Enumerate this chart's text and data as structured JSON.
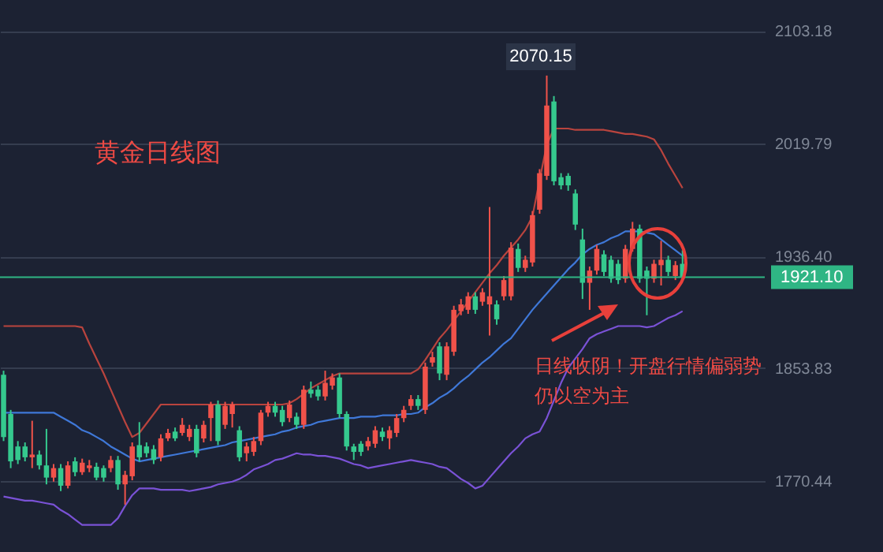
{
  "chart_data": {
    "type": "candlestick",
    "title": "黄金日线图",
    "annotations": [
      "日线收阴！开盘行情偏弱势",
      "仍以空为主",
      "2070.15"
    ],
    "categories": [
      null,
      null,
      null,
      null,
      null,
      null,
      null,
      null,
      null,
      null,
      null,
      null,
      null,
      null,
      null,
      null,
      null,
      null,
      null,
      null,
      null,
      null,
      null,
      null,
      null,
      null,
      null,
      null,
      null,
      null,
      null,
      null,
      null,
      null,
      null,
      null,
      null,
      null,
      null,
      null,
      null,
      null,
      null,
      null,
      null,
      null,
      null,
      null,
      null,
      null,
      null,
      null,
      null,
      null,
      null,
      null,
      null,
      null,
      null,
      null,
      null,
      null,
      null,
      null,
      null,
      null,
      null,
      null,
      null,
      null,
      null,
      null,
      null,
      null,
      null,
      null,
      null,
      null,
      null,
      null,
      null,
      null,
      null,
      null,
      null,
      null,
      null,
      null,
      null,
      null,
      null,
      null,
      null,
      null,
      null,
      null,
      null,
      null,
      null,
      null,
      null,
      null,
      null,
      null,
      null,
      null,
      null
    ],
    "ohlc": [
      [
        1849,
        1852,
        1800,
        1803
      ],
      [
        1820,
        1823,
        1780,
        1785
      ],
      [
        1796,
        1800,
        1783,
        1786
      ],
      [
        1796,
        1799,
        1785,
        1788
      ],
      [
        1788,
        1815,
        1780,
        1790
      ],
      [
        1790,
        1793,
        1779,
        1782
      ],
      [
        1782,
        1809,
        1768,
        1773
      ],
      [
        1773,
        1783,
        1770,
        1780
      ],
      [
        1780,
        1783,
        1763,
        1767
      ],
      [
        1767,
        1785,
        1765,
        1782
      ],
      [
        1785,
        1788,
        1774,
        1777
      ],
      [
        1777,
        1787,
        1775,
        1784
      ],
      [
        1780,
        1786,
        1777,
        1782
      ],
      [
        1781,
        1784,
        1771,
        1773
      ],
      [
        1780,
        1782,
        1770,
        1773
      ],
      [
        1780,
        1789,
        1777,
        1786
      ],
      [
        1786,
        1789,
        1764,
        1768
      ],
      [
        1768,
        1778,
        1753,
        1775
      ],
      [
        1774,
        1799,
        1771,
        1796
      ],
      [
        1797,
        1814,
        1785,
        1788
      ],
      [
        1796,
        1799,
        1788,
        1791
      ],
      [
        1794,
        1797,
        1783,
        1786
      ],
      [
        1788,
        1805,
        1785,
        1802
      ],
      [
        1802,
        1809,
        1800,
        1806
      ],
      [
        1807,
        1810,
        1800,
        1802
      ],
      [
        1806,
        1817,
        1804,
        1812
      ],
      [
        1803,
        1812,
        1800,
        1809
      ],
      [
        1809,
        1812,
        1788,
        1791
      ],
      [
        1802,
        1815,
        1799,
        1812
      ],
      [
        1817,
        1829,
        1800,
        1827
      ],
      [
        1827,
        1830,
        1797,
        1800
      ],
      [
        1812,
        1829,
        1809,
        1826
      ],
      [
        1820,
        1829,
        1810,
        1827
      ],
      [
        1808,
        1811,
        1785,
        1788
      ],
      [
        1791,
        1799,
        1785,
        1796
      ],
      [
        1792,
        1803,
        1789,
        1800
      ],
      [
        1800,
        1823,
        1797,
        1821
      ],
      [
        1821,
        1829,
        1818,
        1826
      ],
      [
        1826,
        1829,
        1818,
        1821
      ],
      [
        1823,
        1826,
        1811,
        1814
      ],
      [
        1817,
        1830,
        1814,
        1827
      ],
      [
        1818,
        1821,
        1809,
        1812
      ],
      [
        1812,
        1841,
        1809,
        1838
      ],
      [
        1838,
        1844,
        1832,
        1835
      ],
      [
        1838,
        1841,
        1830,
        1833
      ],
      [
        1833,
        1852,
        1830,
        1843
      ],
      [
        1841,
        1850,
        1838,
        1847
      ],
      [
        1847,
        1850,
        1817,
        1820
      ],
      [
        1820,
        1822,
        1793,
        1796
      ],
      [
        1796,
        1798,
        1786,
        1792
      ],
      [
        1798,
        1800,
        1789,
        1792
      ],
      [
        1796,
        1803,
        1793,
        1800
      ],
      [
        1798,
        1811,
        1795,
        1808
      ],
      [
        1807,
        1810,
        1800,
        1803
      ],
      [
        1802,
        1811,
        1794,
        1808
      ],
      [
        1806,
        1820,
        1803,
        1817
      ],
      [
        1817,
        1826,
        1814,
        1823
      ],
      [
        1826,
        1834,
        1823,
        1831
      ],
      [
        1831,
        1834,
        1823,
        1826
      ],
      [
        1823,
        1858,
        1820,
        1855
      ],
      [
        1858,
        1866,
        1855,
        1862
      ],
      [
        1870,
        1873,
        1845,
        1850
      ],
      [
        1849,
        1873,
        1845,
        1870
      ],
      [
        1866,
        1900,
        1863,
        1897
      ],
      [
        1896,
        1905,
        1893,
        1901
      ],
      [
        1897,
        1910,
        1894,
        1907
      ],
      [
        1907,
        1910,
        1894,
        1897
      ],
      [
        1903,
        1913,
        1900,
        1910
      ],
      [
        1901,
        1973,
        1878,
        1907
      ],
      [
        1901,
        1904,
        1886,
        1890
      ],
      [
        1907,
        1922,
        1904,
        1919
      ],
      [
        1907,
        1947,
        1904,
        1943
      ],
      [
        1942,
        1946,
        1925,
        1928
      ],
      [
        1928,
        1937,
        1925,
        1934
      ],
      [
        1932,
        1970,
        1929,
        1967
      ],
      [
        1971,
        2001,
        1968,
        1998
      ],
      [
        1996,
        2070.15,
        1993,
        2048
      ],
      [
        2051,
        2055,
        1989,
        1992
      ],
      [
        1995,
        1998,
        1986,
        1989
      ],
      [
        1996,
        1998,
        1985,
        1989
      ],
      [
        1983,
        1986,
        1956,
        1960
      ],
      [
        1949,
        1957,
        1905,
        1917
      ],
      [
        1917,
        1929,
        1897,
        1926
      ],
      [
        1926,
        1945,
        1923,
        1942
      ],
      [
        1938,
        1941,
        1922,
        1925
      ],
      [
        1934,
        1937,
        1917,
        1920
      ],
      [
        1931,
        1934,
        1916,
        1919
      ],
      [
        1920,
        1945,
        1917,
        1942
      ],
      [
        1942,
        1962,
        1940,
        1957
      ],
      [
        1957,
        1960,
        1917,
        1920
      ],
      [
        1926,
        1929,
        1893,
        1920
      ],
      [
        1920,
        1934,
        1917,
        1931
      ],
      [
        1930,
        1948,
        1915,
        1934
      ],
      [
        1934,
        1937,
        1922,
        1925
      ],
      [
        1922,
        1933,
        1919,
        1930
      ],
      [
        1931,
        1941,
        1919,
        1921.1
      ],
      null,
      null,
      null,
      null,
      null,
      null,
      null,
      null,
      null,
      null,
      null
    ],
    "colors": [
      "#35c98e",
      "#35c98e",
      "#35c98e",
      "#35c98e",
      "#f0524a",
      "#35c98e",
      "#35c98e",
      "#f0524a",
      "#35c98e",
      "#f0524a",
      "#35c98e",
      "#f0524a",
      "#f0524a",
      "#35c98e",
      "#35c98e",
      "#f0524a",
      "#35c98e",
      "#f0524a",
      "#f0524a",
      "#35c98e",
      "#35c98e",
      "#35c98e",
      "#f0524a",
      "#f0524a",
      "#35c98e",
      "#f0524a",
      "#f0524a",
      "#35c98e",
      "#f0524a",
      "#f0524a",
      "#35c98e",
      "#f0524a",
      "#f0524a",
      "#35c98e",
      "#f0524a",
      "#f0524a",
      "#f0524a",
      "#f0524a",
      "#35c98e",
      "#35c98e",
      "#f0524a",
      "#35c98e",
      "#f0524a",
      "#35c98e",
      "#35c98e",
      "#f0524a",
      "#f0524a",
      "#35c98e",
      "#35c98e",
      "#35c98e",
      "#35c98e",
      "#f0524a",
      "#f0524a",
      "#35c98e",
      "#f0524a",
      "#f0524a",
      "#f0524a",
      "#f0524a",
      "#35c98e",
      "#f0524a",
      "#f0524a",
      "#35c98e",
      "#f0524a",
      "#f0524a",
      "#f0524a",
      "#f0524a",
      "#35c98e",
      "#f0524a",
      "#f0524a",
      "#35c98e",
      "#f0524a",
      "#f0524a",
      "#35c98e",
      "#f0524a",
      "#f0524a",
      "#f0524a",
      "#f0524a",
      "#35c98e",
      "#35c98e",
      "#35c98e",
      "#35c98e",
      "#35c98e",
      "#f0524a",
      "#f0524a",
      "#35c98e",
      "#35c98e",
      "#35c98e",
      "#f0524a",
      "#f0524a",
      "#35c98e",
      "#35c98e",
      "#f0524a",
      "#f0524a",
      "#35c98e",
      "#f0524a",
      "#35c98e",
      null,
      null,
      null,
      null,
      null,
      null,
      null,
      null,
      null,
      null,
      null
    ],
    "series": [
      {
        "type": "line",
        "color": "#b9443e",
        "values": [
          1885,
          1885,
          1885,
          1885,
          1885,
          1885,
          1885,
          1885,
          1885,
          1885,
          1885,
          1884,
          1872,
          1861,
          1850,
          1838,
          1826,
          1814,
          1803,
          1806,
          1813,
          1820,
          1827,
          1827,
          1827,
          1827,
          1827,
          1827,
          1827,
          1827,
          1827,
          1827,
          1827,
          1827,
          1827,
          1827,
          1827,
          1827,
          1827,
          1827,
          1828,
          1831,
          1835,
          1839,
          1842,
          1845,
          1848,
          1850,
          1850,
          1850,
          1850,
          1850,
          1850,
          1850,
          1850,
          1850,
          1850,
          1850,
          1853,
          1860,
          1868,
          1876,
          1882,
          1889,
          1896,
          1903,
          1910,
          1917,
          1924,
          1930,
          1937,
          1943,
          1949,
          1956,
          1966,
          1993,
          2019,
          2031,
          2031,
          2031,
          2030,
          2030,
          2030,
          2030,
          2030,
          2029,
          2028,
          2027,
          2027,
          2026,
          2025,
          2023,
          2015,
          2005,
          1996,
          1987,
          null,
          null,
          null,
          null,
          null,
          null,
          null,
          null,
          null,
          null,
          null
        ]
      },
      {
        "type": "line",
        "color": "#3f78d8",
        "values": [
          1821,
          1821,
          1821,
          1821,
          1821,
          1821,
          1821,
          1821,
          1818,
          1815,
          1812,
          1808,
          1806,
          1803,
          1800,
          1796,
          1793,
          1790,
          1787,
          1785,
          1786,
          1787,
          1788,
          1789,
          1790,
          1791,
          1792,
          1793,
          1794,
          1795,
          1796,
          1797,
          1799,
          1800,
          1801,
          1802,
          1803,
          1804,
          1805,
          1807,
          1808,
          1810,
          1811,
          1812,
          1814,
          1815,
          1816,
          1817,
          1817,
          1817,
          1818,
          1818,
          1818,
          1819,
          1819,
          1819,
          1820,
          1820,
          1821,
          1825,
          1828,
          1832,
          1835,
          1839,
          1844,
          1848,
          1853,
          1858,
          1862,
          1867,
          1872,
          1876,
          1883,
          1890,
          1897,
          1903,
          1909,
          1915,
          1921,
          1927,
          1932,
          1938,
          1942,
          1945,
          1947,
          1950,
          1952,
          1955,
          1955,
          1955,
          1954,
          1953,
          1949,
          1945,
          1941,
          1937,
          null,
          null,
          null,
          null,
          null,
          null,
          null,
          null,
          null,
          null,
          null
        ]
      },
      {
        "type": "line",
        "color": "#7a52d6",
        "values": [
          1759,
          1758,
          1757,
          1756,
          1756,
          1755,
          1754,
          1753,
          1749,
          1746,
          1742,
          1738,
          1738,
          1738,
          1738,
          1738,
          1743,
          1752,
          1760,
          1765,
          1765,
          1765,
          1764,
          1764,
          1764,
          1764,
          1763,
          1764,
          1765,
          1766,
          1768,
          1769,
          1770,
          1772,
          1775,
          1779,
          1781,
          1783,
          1786,
          1787,
          1789,
          1791,
          1790,
          1790,
          1789,
          1789,
          1788,
          1787,
          1785,
          1783,
          1782,
          1780,
          1781,
          1782,
          1783,
          1784,
          1785,
          1786,
          1785,
          1784,
          1783,
          1781,
          1780,
          1776,
          1772,
          1769,
          1765,
          1767,
          1773,
          1779,
          1785,
          1791,
          1796,
          1802,
          1805,
          1807,
          1817,
          1830,
          1843,
          1854,
          1861,
          1868,
          1876,
          1879,
          1881,
          1883,
          1885,
          1885,
          1885,
          1885,
          1884,
          1885,
          1888,
          1891,
          1893,
          1896,
          null,
          null,
          null,
          null,
          null,
          null,
          null,
          null,
          null,
          null,
          null
        ]
      }
    ],
    "ylim": [
      1718,
      2126
    ],
    "yticks": [
      2103.18,
      2019.79,
      {
        "value": 1936.4,
        "label": "1936.40"
      },
      1853.83,
      1770.44
    ],
    "ref_lines": [
      {
        "axis": "y",
        "value": 1921.1,
        "label": "1921.10",
        "color": "#2fb584"
      }
    ],
    "grid": "y",
    "tick_labels": "y"
  }
}
